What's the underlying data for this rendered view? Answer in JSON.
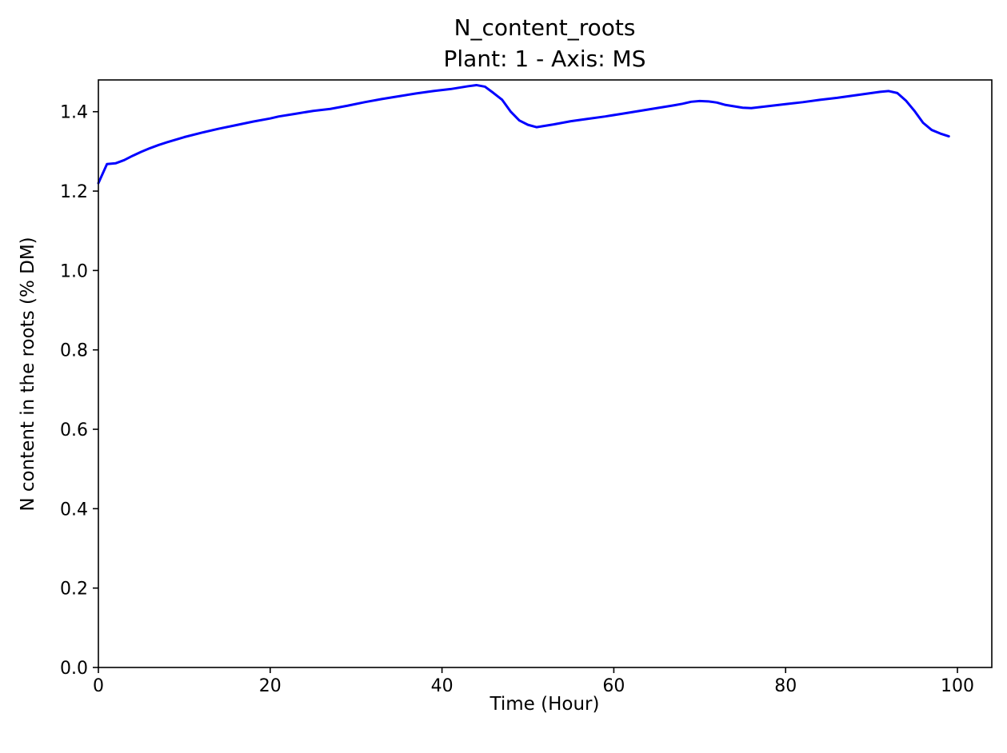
{
  "chart_data": {
    "type": "line",
    "title": "N_content_roots",
    "subtitle": "Plant: 1 - Axis: MS",
    "xlabel": "Time (Hour)",
    "ylabel": "N content in the roots (% DM)",
    "xlim": [
      0,
      104
    ],
    "ylim": [
      0.0,
      1.48
    ],
    "xticks": [
      0,
      20,
      40,
      60,
      80,
      100
    ],
    "yticks": [
      0.0,
      0.2,
      0.4,
      0.6,
      0.8,
      1.0,
      1.2,
      1.4
    ],
    "xtick_labels": [
      "0",
      "20",
      "40",
      "60",
      "80",
      "100"
    ],
    "ytick_labels": [
      "0.0",
      "0.2",
      "0.4",
      "0.6",
      "0.8",
      "1.0",
      "1.2",
      "1.4"
    ],
    "grid": false,
    "series": [
      {
        "color": "#0000ff",
        "x": [
          0,
          1,
          2,
          3,
          4,
          5,
          6,
          7,
          8,
          10,
          12,
          14,
          16,
          18,
          20,
          21,
          23,
          25,
          27,
          29,
          31,
          33,
          35,
          37,
          39,
          41,
          43,
          44,
          45,
          46,
          47,
          48,
          49,
          50,
          51,
          53,
          55,
          57,
          59,
          61,
          63,
          65,
          67,
          68,
          69,
          70,
          71,
          72,
          73,
          75,
          76,
          78,
          80,
          82,
          84,
          86,
          88,
          90,
          91,
          92,
          93,
          94,
          95,
          96,
          97,
          98,
          99
        ],
        "y": [
          1.22,
          1.268,
          1.27,
          1.278,
          1.289,
          1.299,
          1.308,
          1.316,
          1.323,
          1.336,
          1.347,
          1.357,
          1.366,
          1.375,
          1.383,
          1.388,
          1.395,
          1.402,
          1.407,
          1.415,
          1.424,
          1.432,
          1.439,
          1.446,
          1.452,
          1.457,
          1.464,
          1.467,
          1.463,
          1.447,
          1.43,
          1.4,
          1.378,
          1.367,
          1.361,
          1.368,
          1.376,
          1.382,
          1.388,
          1.395,
          1.402,
          1.409,
          1.416,
          1.42,
          1.425,
          1.427,
          1.426,
          1.423,
          1.417,
          1.41,
          1.409,
          1.414,
          1.419,
          1.424,
          1.43,
          1.435,
          1.441,
          1.447,
          1.45,
          1.452,
          1.447,
          1.428,
          1.402,
          1.372,
          1.354,
          1.345,
          1.338
        ]
      }
    ]
  }
}
